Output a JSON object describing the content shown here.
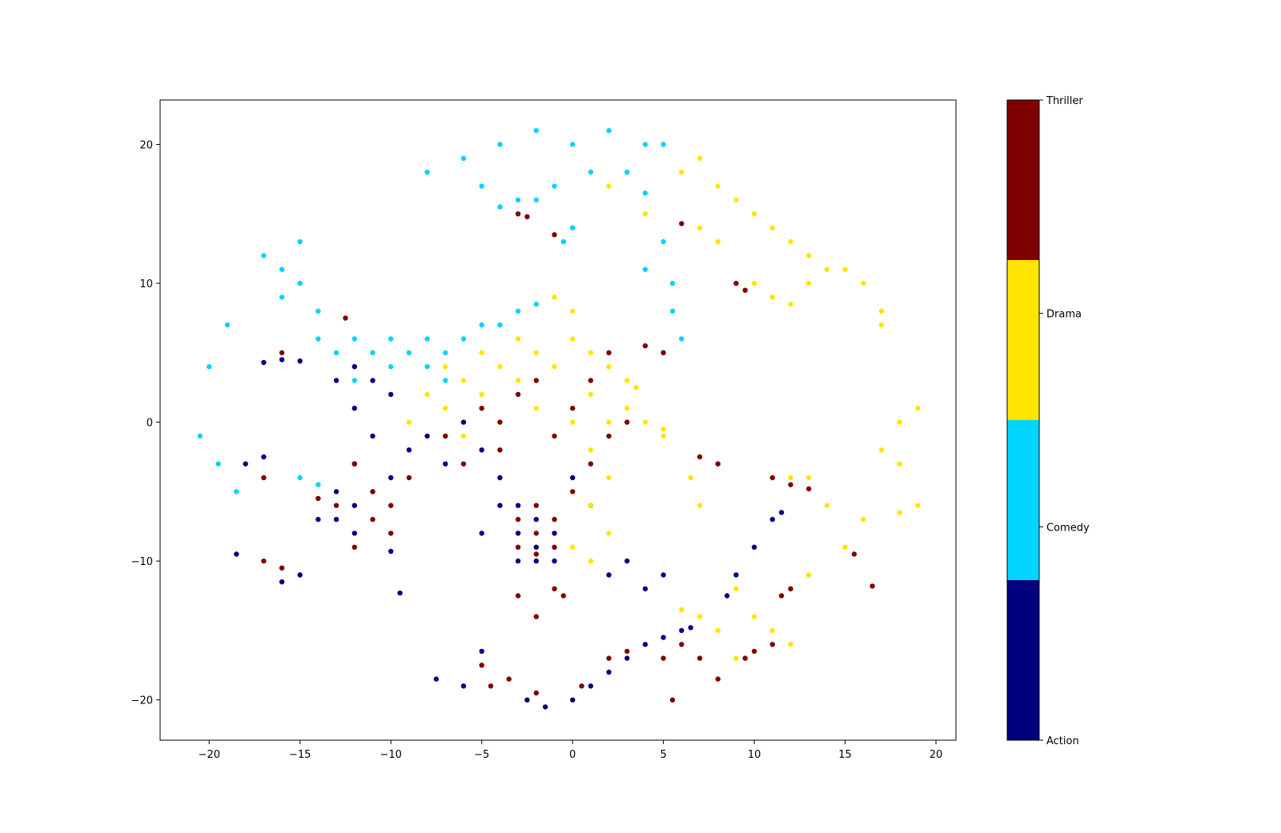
{
  "chart_data": {
    "type": "scatter",
    "title": "",
    "xlabel": "",
    "ylabel": "",
    "xlim": [
      -22.7,
      21.1
    ],
    "ylim": [
      -22.9,
      23.2
    ],
    "xticks": [
      -20,
      -15,
      -10,
      -5,
      0,
      5,
      10,
      15,
      20
    ],
    "yticks": [
      -20,
      -10,
      0,
      10,
      20
    ],
    "grid": false,
    "legend": "none",
    "colorbar": {
      "position": "right",
      "categories": [
        "Action",
        "Comedy",
        "Drama",
        "Thriller"
      ],
      "tick_labels": [
        "Action",
        "Comedy",
        "Drama",
        "Thriller"
      ],
      "colors": [
        "#00007f",
        "#00d4ff",
        "#ffe500",
        "#7f0000"
      ]
    },
    "series": [
      {
        "category": "Action",
        "color": "#00007f",
        "values": [
          [
            -12,
            -6
          ],
          [
            -13,
            -7
          ],
          [
            -12,
            -8
          ],
          [
            -11,
            -5
          ],
          [
            -10,
            -4
          ],
          [
            -13,
            -5
          ],
          [
            -14,
            -7
          ],
          [
            -12,
            -3
          ],
          [
            -11,
            -1
          ],
          [
            -12,
            1
          ],
          [
            -11,
            3
          ],
          [
            -12,
            4
          ],
          [
            -13,
            3
          ],
          [
            -10,
            2
          ],
          [
            -9,
            -2
          ],
          [
            -8,
            -1
          ],
          [
            -3,
            -10
          ],
          [
            -2,
            -9
          ],
          [
            -1,
            -8
          ],
          [
            -2,
            -7
          ],
          [
            -3,
            -6
          ],
          [
            -1,
            -10
          ],
          [
            -2,
            -10
          ],
          [
            -3,
            -8
          ],
          [
            -17,
            4.3
          ],
          [
            -16,
            4.5
          ],
          [
            -15,
            4.4
          ],
          [
            -17,
            -2.5
          ],
          [
            -18,
            -3
          ],
          [
            -18.5,
            -9.5
          ],
          [
            -16,
            -11.5
          ],
          [
            -15,
            -11
          ],
          [
            -10,
            -9.3
          ],
          [
            -9.5,
            -12.3
          ],
          [
            -5,
            -16.5
          ],
          [
            -6,
            -19
          ],
          [
            -7.5,
            -18.5
          ],
          [
            -2.5,
            -20
          ],
          [
            -1.5,
            -20.5
          ],
          [
            0,
            -20
          ],
          [
            1,
            -19
          ],
          [
            2,
            -18
          ],
          [
            3,
            -17
          ],
          [
            4,
            -16
          ],
          [
            5,
            -15.5
          ],
          [
            6,
            -15
          ],
          [
            6.5,
            -14.8
          ],
          [
            5,
            -11
          ],
          [
            4,
            -12
          ],
          [
            3,
            -10
          ],
          [
            2,
            -11
          ],
          [
            8.5,
            -12.5
          ],
          [
            9,
            -11
          ],
          [
            10,
            -9
          ],
          [
            11,
            -7
          ],
          [
            11.5,
            -6.5
          ],
          [
            1,
            -6
          ],
          [
            0,
            -4
          ],
          [
            -4,
            -4
          ],
          [
            -5,
            -2
          ],
          [
            -6,
            0
          ],
          [
            -7,
            -3
          ],
          [
            -4,
            -6
          ],
          [
            -5,
            -8
          ]
        ]
      },
      {
        "category": "Comedy",
        "color": "#00d4ff",
        "values": [
          [
            -12,
            6
          ],
          [
            -11,
            5
          ],
          [
            -10,
            6
          ],
          [
            -9,
            5
          ],
          [
            -8,
            6
          ],
          [
            -7,
            5
          ],
          [
            -6,
            6
          ],
          [
            -5,
            7
          ],
          [
            -4,
            7
          ],
          [
            -3,
            8
          ],
          [
            -2,
            8.5
          ],
          [
            -10,
            4
          ],
          [
            -12,
            3
          ],
          [
            -13,
            5
          ],
          [
            -8,
            4
          ],
          [
            -7,
            3
          ],
          [
            -14,
            8
          ],
          [
            -14,
            6
          ],
          [
            -15,
            10
          ],
          [
            -16,
            11
          ],
          [
            -17,
            12
          ],
          [
            -15,
            13
          ],
          [
            -16,
            9
          ],
          [
            -19,
            7
          ],
          [
            -20,
            4
          ],
          [
            -20.5,
            -1
          ],
          [
            -19.5,
            -3
          ],
          [
            -18.5,
            -5
          ],
          [
            -15,
            -4
          ],
          [
            -14,
            -4.5
          ],
          [
            -8,
            18
          ],
          [
            -6,
            19
          ],
          [
            -4,
            20
          ],
          [
            -2,
            21
          ],
          [
            0,
            20
          ],
          [
            2,
            21
          ],
          [
            4,
            20
          ],
          [
            5,
            20
          ],
          [
            -5,
            17
          ],
          [
            -3,
            16
          ],
          [
            -1,
            17
          ],
          [
            1,
            18
          ],
          [
            3,
            18
          ],
          [
            4,
            16.5
          ],
          [
            -4,
            15.5
          ],
          [
            -2,
            16
          ],
          [
            0,
            14
          ],
          [
            -0.5,
            13
          ],
          [
            5,
            13
          ],
          [
            4,
            11
          ],
          [
            5.5,
            10
          ],
          [
            5.5,
            8
          ],
          [
            6,
            6
          ],
          [
            5,
            5
          ]
        ]
      },
      {
        "category": "Drama",
        "color": "#ffe500",
        "values": [
          [
            -8,
            2
          ],
          [
            -6,
            3
          ],
          [
            -4,
            4
          ],
          [
            -2,
            5
          ],
          [
            0,
            6
          ],
          [
            1,
            5
          ],
          [
            2,
            4
          ],
          [
            3,
            3
          ],
          [
            -9,
            0
          ],
          [
            -7,
            1
          ],
          [
            -5,
            2
          ],
          [
            -3,
            3
          ],
          [
            -1,
            4
          ],
          [
            1,
            2
          ],
          [
            2,
            0
          ],
          [
            3,
            1
          ],
          [
            -6,
            -1
          ],
          [
            -4,
            0
          ],
          [
            -2,
            1
          ],
          [
            0,
            0
          ],
          [
            1,
            -2
          ],
          [
            2,
            -4
          ],
          [
            1,
            -6
          ],
          [
            2,
            -8
          ],
          [
            0,
            -9
          ],
          [
            1,
            -10
          ],
          [
            0,
            8
          ],
          [
            -1,
            9
          ],
          [
            -3,
            6
          ],
          [
            -5,
            5
          ],
          [
            -7,
            4
          ],
          [
            4,
            0
          ],
          [
            5,
            -0.5
          ],
          [
            5,
            -1
          ],
          [
            3.5,
            2.5
          ],
          [
            6,
            18
          ],
          [
            7,
            19
          ],
          [
            8,
            17
          ],
          [
            9,
            16
          ],
          [
            10,
            15
          ],
          [
            11,
            14
          ],
          [
            12,
            13
          ],
          [
            13,
            12
          ],
          [
            14,
            11
          ],
          [
            15,
            11
          ],
          [
            16,
            10
          ],
          [
            17,
            8
          ],
          [
            17,
            7
          ],
          [
            7,
            14
          ],
          [
            8,
            13
          ],
          [
            10,
            10
          ],
          [
            11,
            9
          ],
          [
            12,
            8.5
          ],
          [
            13,
            10
          ],
          [
            2,
            17
          ],
          [
            4,
            15
          ],
          [
            6.5,
            -4
          ],
          [
            7,
            -6
          ],
          [
            11,
            -4
          ],
          [
            12,
            -4
          ],
          [
            13,
            -4
          ],
          [
            14,
            -6
          ],
          [
            16,
            -7
          ],
          [
            18,
            -6.5
          ],
          [
            19,
            -6
          ],
          [
            18,
            0
          ],
          [
            19,
            1
          ],
          [
            17,
            -2
          ],
          [
            18,
            -3
          ],
          [
            15,
            -9
          ],
          [
            13,
            -11
          ],
          [
            12,
            -12
          ],
          [
            9,
            -12
          ],
          [
            10,
            -14
          ],
          [
            8,
            -15
          ],
          [
            11,
            -15
          ],
          [
            12,
            -16
          ],
          [
            7,
            -14
          ],
          [
            6,
            -13.5
          ],
          [
            9,
            -17
          ]
        ]
      },
      {
        "category": "Thriller",
        "color": "#7f0000",
        "values": [
          [
            -12,
            -3
          ],
          [
            -11,
            -5
          ],
          [
            -13,
            -6
          ],
          [
            -11,
            -7
          ],
          [
            -10,
            -6
          ],
          [
            -9,
            -4
          ],
          [
            -12,
            -9
          ],
          [
            -10,
            -8
          ],
          [
            -2,
            -6
          ],
          [
            -1,
            -7
          ],
          [
            -2,
            -8
          ],
          [
            -1,
            -9
          ],
          [
            -3,
            -7
          ],
          [
            0,
            -5
          ],
          [
            -3,
            -9
          ],
          [
            -2,
            -9.5
          ],
          [
            -4,
            0
          ],
          [
            -3,
            2
          ],
          [
            -2,
            3
          ],
          [
            -5,
            1
          ],
          [
            -1,
            -1
          ],
          [
            0,
            1
          ],
          [
            1,
            3
          ],
          [
            2,
            5
          ],
          [
            3,
            0
          ],
          [
            2,
            -1
          ],
          [
            1,
            -3
          ],
          [
            -6,
            -3
          ],
          [
            -7,
            -1
          ],
          [
            -4,
            -2
          ],
          [
            -17,
            -10
          ],
          [
            -16,
            -10.5
          ],
          [
            -17,
            -4
          ],
          [
            -14,
            -5.5
          ],
          [
            -12.5,
            7.5
          ],
          [
            -16,
            5
          ],
          [
            -3,
            15
          ],
          [
            -2.5,
            14.8
          ],
          [
            -1,
            13.5
          ],
          [
            6,
            14.3
          ],
          [
            9,
            10
          ],
          [
            9.5,
            9.5
          ],
          [
            4,
            5.5
          ],
          [
            5,
            5
          ],
          [
            7,
            -2.5
          ],
          [
            8,
            -3
          ],
          [
            11,
            -4
          ],
          [
            12,
            -4.5
          ],
          [
            13,
            -4.8
          ],
          [
            -1,
            -12
          ],
          [
            -2,
            -14
          ],
          [
            -3,
            -12.5
          ],
          [
            -0.5,
            -12.5
          ],
          [
            -5,
            -17.5
          ],
          [
            -4.5,
            -19
          ],
          [
            -3.5,
            -18.5
          ],
          [
            -2,
            -19.5
          ],
          [
            0.5,
            -19
          ],
          [
            2,
            -17
          ],
          [
            3,
            -16.5
          ],
          [
            5,
            -17
          ],
          [
            6,
            -16
          ],
          [
            7,
            -17
          ],
          [
            8,
            -18.5
          ],
          [
            9.5,
            -17
          ],
          [
            10,
            -16.5
          ],
          [
            11,
            -16
          ],
          [
            11.5,
            -12.5
          ],
          [
            12,
            -12
          ],
          [
            15.5,
            -9.5
          ],
          [
            16.5,
            -11.8
          ],
          [
            5.5,
            -20
          ]
        ]
      }
    ]
  }
}
